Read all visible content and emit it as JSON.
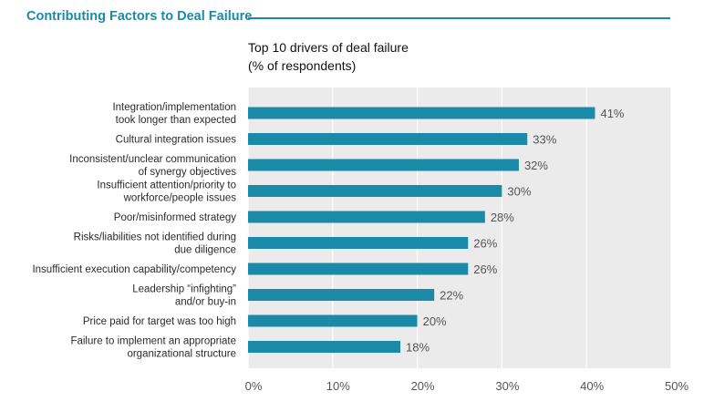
{
  "header": {
    "title": "Contributing Factors to Deal Failure"
  },
  "chart_data": {
    "type": "bar",
    "orientation": "horizontal",
    "title_lines": [
      "Top 10 drivers of deal failure",
      "(% of respondents)"
    ],
    "categories": [
      [
        "Integration/implementation",
        "took longer than expected"
      ],
      [
        "Cultural integration issues"
      ],
      [
        "Inconsistent/unclear communication",
        "of synergy objectives"
      ],
      [
        "Insufficient attention/priority to",
        "workforce/people issues"
      ],
      [
        "Poor/misinformed strategy"
      ],
      [
        "Risks/liabilities not identified during",
        "due diligence"
      ],
      [
        "Insufficient execution capability/competency"
      ],
      [
        "Leadership “infighting”",
        "and/or buy-in"
      ],
      [
        "Price paid for target was too high"
      ],
      [
        "Failure to implement an appropriate",
        "organizational structure"
      ]
    ],
    "values": [
      41,
      33,
      32,
      30,
      28,
      26,
      26,
      22,
      20,
      18
    ],
    "value_labels": [
      "41%",
      "33%",
      "32%",
      "30%",
      "28%",
      "26%",
      "26%",
      "22%",
      "20%",
      "18%"
    ],
    "xlim": [
      0,
      50
    ],
    "x_ticks": [
      "0%",
      "10%",
      "20%",
      "30%",
      "40%",
      "50%"
    ],
    "grid": true,
    "bar_color": "#1a8aa8",
    "plot_background": "#ebebeb",
    "grid_color": "#ffffff"
  }
}
